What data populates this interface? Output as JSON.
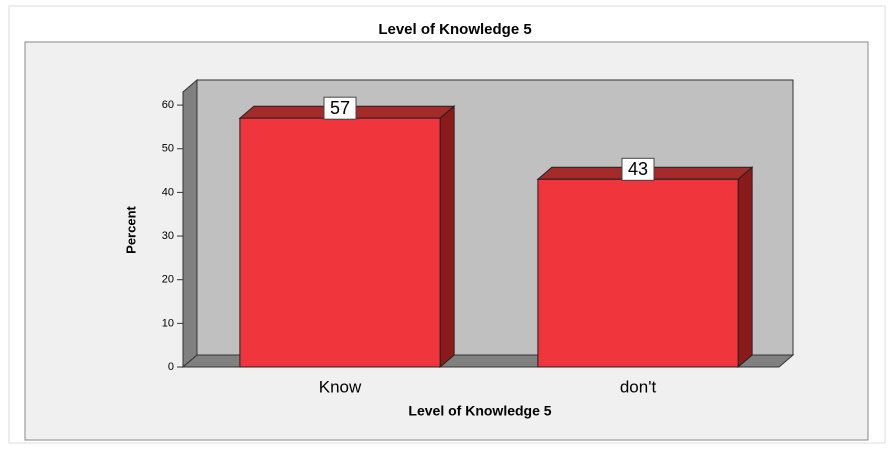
{
  "chart_data": {
    "type": "bar3d",
    "title": "Level of Knowledge 5",
    "x_label": "Level of Knowledge 5",
    "y_label": "Percent",
    "categories": [
      "Know",
      "don't"
    ],
    "values": [
      57,
      43
    ],
    "color": "#f0353d",
    "ylim": [
      0,
      63
    ],
    "yticks": [
      0,
      10,
      20,
      30,
      40,
      50,
      60
    ],
    "grid": false
  }
}
